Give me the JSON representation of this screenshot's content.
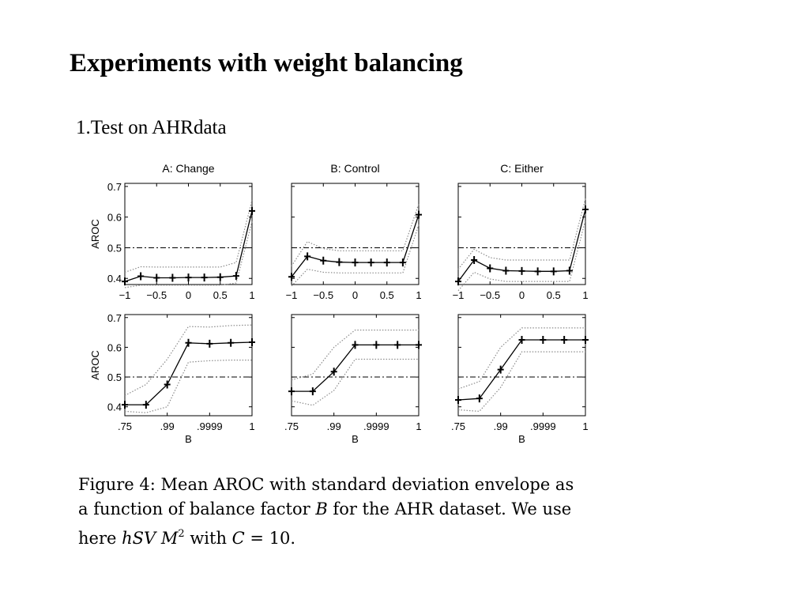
{
  "slide": {
    "title": "Experiments with weight balancing",
    "subtitle": "1.Test on AHRdata"
  },
  "colors": {
    "line": "#000000",
    "envelope": "#8c8c8c",
    "reference": "#000000"
  },
  "chart_data": [
    {
      "type": "line",
      "title": "A: Change",
      "xlabel": "",
      "ylabel": "AROC",
      "xlim": [
        -1,
        1
      ],
      "ylim": [
        0.38,
        0.71
      ],
      "reference_line": 0.5,
      "xticks": [
        -1,
        -0.5,
        0,
        0.5,
        1
      ],
      "xticklabels": [
        "−1",
        "−0.5",
        "0",
        "0.5",
        "1"
      ],
      "yticks": [
        0.4,
        0.5,
        0.6,
        0.7
      ],
      "yticklabels": [
        "0.4",
        "0.5",
        "0.6",
        "0.7"
      ],
      "x": [
        -1,
        -0.75,
        -0.5,
        -0.25,
        0,
        0.25,
        0.5,
        0.75,
        1
      ],
      "mean": [
        0.39,
        0.407,
        0.402,
        0.402,
        0.403,
        0.403,
        0.404,
        0.408,
        0.62
      ],
      "upper": [
        0.42,
        0.438,
        0.437,
        0.437,
        0.437,
        0.437,
        0.437,
        0.452,
        0.655
      ],
      "lower": [
        0.37,
        0.378,
        0.378,
        0.378,
        0.378,
        0.378,
        0.378,
        0.385,
        0.585
      ]
    },
    {
      "type": "line",
      "title": "B: Control",
      "xlabel": "",
      "ylabel": "",
      "xlim": [
        -1,
        1
      ],
      "ylim": [
        0.38,
        0.71
      ],
      "reference_line": 0.5,
      "xticks": [
        -1,
        -0.5,
        0,
        0.5,
        1
      ],
      "xticklabels": [
        "−1",
        "−0.5",
        "0",
        "0.5",
        "1"
      ],
      "yticks": [
        0.4,
        0.5,
        0.6,
        0.7
      ],
      "yticklabels": [],
      "x": [
        -1,
        -0.75,
        -0.5,
        -0.25,
        0,
        0.25,
        0.5,
        0.75,
        1
      ],
      "mean": [
        0.405,
        0.472,
        0.458,
        0.453,
        0.452,
        0.452,
        0.452,
        0.452,
        0.608
      ],
      "upper": [
        0.44,
        0.52,
        0.497,
        0.49,
        0.49,
        0.49,
        0.49,
        0.49,
        0.643
      ],
      "lower": [
        0.375,
        0.43,
        0.42,
        0.418,
        0.418,
        0.418,
        0.418,
        0.418,
        0.575
      ]
    },
    {
      "type": "line",
      "title": "C: Either",
      "xlabel": "",
      "ylabel": "",
      "xlim": [
        -1,
        1
      ],
      "ylim": [
        0.38,
        0.71
      ],
      "reference_line": 0.5,
      "xticks": [
        -1,
        -0.5,
        0,
        0.5,
        1
      ],
      "xticklabels": [
        "−1",
        "−0.5",
        "0",
        "0.5",
        "1"
      ],
      "yticks": [
        0.4,
        0.5,
        0.6,
        0.7
      ],
      "yticklabels": [],
      "x": [
        -1,
        -0.75,
        -0.5,
        -0.25,
        0,
        0.25,
        0.5,
        0.75,
        1
      ],
      "mean": [
        0.39,
        0.46,
        0.433,
        0.425,
        0.424,
        0.423,
        0.423,
        0.425,
        0.625
      ],
      "upper": [
        0.43,
        0.495,
        0.468,
        0.46,
        0.46,
        0.46,
        0.46,
        0.46,
        0.66
      ],
      "lower": [
        0.36,
        0.42,
        0.398,
        0.39,
        0.39,
        0.39,
        0.39,
        0.39,
        0.59
      ]
    },
    {
      "type": "line",
      "title": "",
      "xlabel": "B",
      "ylabel": "AROC",
      "xlim": [
        0,
        6
      ],
      "ylim": [
        0.37,
        0.71
      ],
      "reference_line": 0.5,
      "xticks": [
        0,
        2,
        4,
        6
      ],
      "xticklabels": [
        ".75",
        ".99",
        ".9999",
        "1"
      ],
      "yticks": [
        0.4,
        0.5,
        0.6,
        0.7
      ],
      "yticklabels": [
        "0.4",
        "0.5",
        "0.6",
        "0.7"
      ],
      "x": [
        0,
        1,
        2,
        3,
        4,
        5,
        6
      ],
      "mean": [
        0.407,
        0.407,
        0.475,
        0.615,
        0.612,
        0.615,
        0.617
      ],
      "upper": [
        0.438,
        0.475,
        0.56,
        0.67,
        0.668,
        0.673,
        0.675
      ],
      "lower": [
        0.385,
        0.38,
        0.4,
        0.55,
        0.555,
        0.557,
        0.557
      ]
    },
    {
      "type": "line",
      "title": "",
      "xlabel": "B",
      "ylabel": "",
      "xlim": [
        0,
        6
      ],
      "ylim": [
        0.37,
        0.71
      ],
      "reference_line": 0.5,
      "xticks": [
        0,
        2,
        4,
        6
      ],
      "xticklabels": [
        ".75",
        ".99",
        ".9999",
        "1"
      ],
      "yticks": [
        0.4,
        0.5,
        0.6,
        0.7
      ],
      "yticklabels": [],
      "x": [
        0,
        1,
        2,
        3,
        4,
        5,
        6
      ],
      "mean": [
        0.452,
        0.452,
        0.518,
        0.608,
        0.608,
        0.608,
        0.608
      ],
      "upper": [
        0.49,
        0.51,
        0.6,
        0.658,
        0.658,
        0.658,
        0.658
      ],
      "lower": [
        0.42,
        0.405,
        0.455,
        0.56,
        0.56,
        0.56,
        0.56
      ]
    },
    {
      "type": "line",
      "title": "",
      "xlabel": "B",
      "ylabel": "",
      "xlim": [
        0,
        6
      ],
      "ylim": [
        0.37,
        0.71
      ],
      "reference_line": 0.5,
      "xticks": [
        0,
        2,
        4,
        6
      ],
      "xticklabels": [
        ".75",
        ".99",
        ".9999",
        "1"
      ],
      "yticks": [
        0.4,
        0.5,
        0.6,
        0.7
      ],
      "yticklabels": [],
      "x": [
        0,
        1,
        2,
        3,
        4,
        5,
        6
      ],
      "mean": [
        0.423,
        0.428,
        0.525,
        0.625,
        0.625,
        0.625,
        0.625
      ],
      "upper": [
        0.46,
        0.485,
        0.6,
        0.665,
        0.665,
        0.665,
        0.665
      ],
      "lower": [
        0.39,
        0.385,
        0.465,
        0.585,
        0.585,
        0.585,
        0.585
      ]
    }
  ],
  "caption": {
    "line1": "Figure 4:  Mean AROC with standard deviation envelope as",
    "line2_a": "a function of balance factor ",
    "line2_var": "B",
    "line2_b": " for the AHR dataset.  We use",
    "line3_a": "here ",
    "line3_var": "hSV M",
    "line3_sup": "2",
    "line3_b": " with ",
    "line3_var2": "C",
    "line3_c": " = 10."
  }
}
